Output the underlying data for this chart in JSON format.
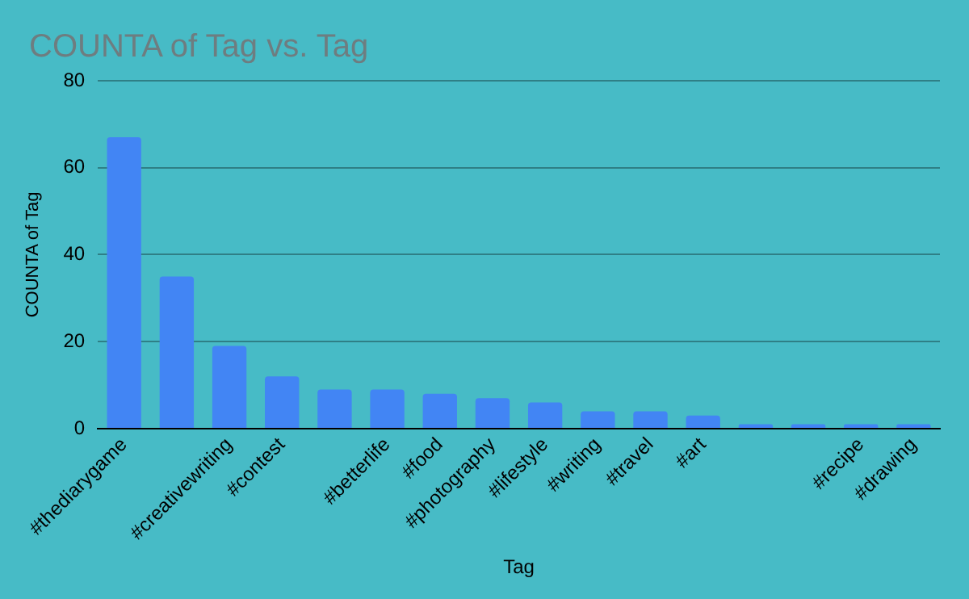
{
  "chart_data": {
    "type": "bar",
    "title": "COUNTA of Tag vs. Tag",
    "xlabel": "Tag",
    "ylabel": "COUNTA of Tag",
    "categories": [
      "#thediarygame",
      null,
      "#creativewriting",
      "#contest",
      null,
      "#betterlife",
      "#food",
      "#photography",
      "#lifestyle",
      "#writing",
      "#travel",
      "#art",
      null,
      null,
      "#recipe",
      "#drawing"
    ],
    "values": [
      67,
      35,
      19,
      12,
      9,
      9,
      8,
      7,
      6,
      4,
      4,
      3,
      1,
      1,
      1,
      1
    ],
    "color": "#4285f4",
    "ylim": [
      0,
      80
    ],
    "yticks": [
      0,
      20,
      40,
      60,
      80
    ],
    "grid": "y"
  }
}
